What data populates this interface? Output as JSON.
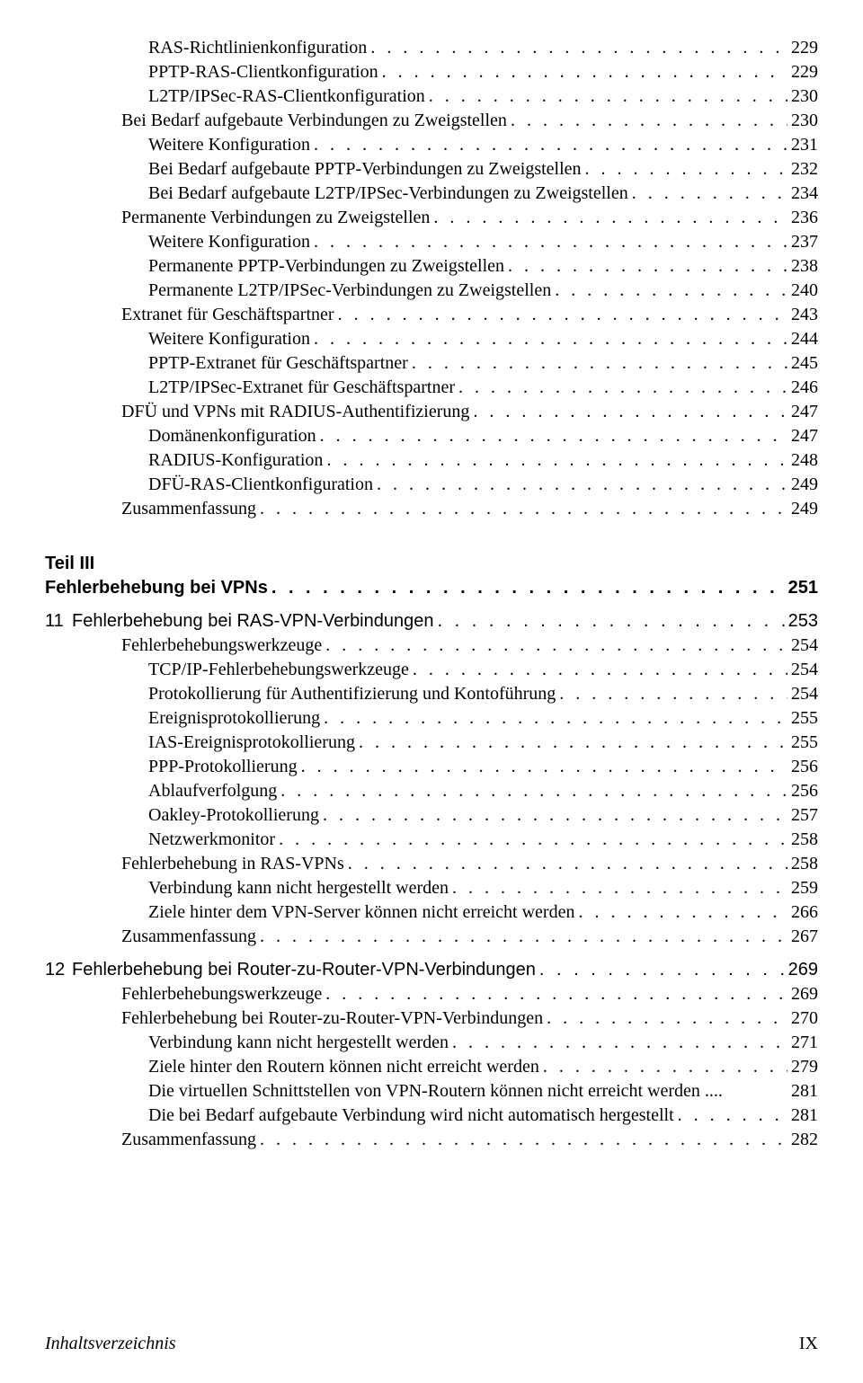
{
  "top": [
    {
      "label": "RAS-Richtlinienkonfiguration",
      "page": "229",
      "indent": 3
    },
    {
      "label": "PPTP-RAS-Clientkonfiguration",
      "page": "229",
      "indent": 3
    },
    {
      "label": "L2TP/IPSec-RAS-Clientkonfiguration",
      "page": "230",
      "indent": 3
    },
    {
      "label": "Bei Bedarf aufgebaute Verbindungen zu Zweigstellen",
      "page": "230",
      "indent": 2
    },
    {
      "label": "Weitere Konfiguration",
      "page": "231",
      "indent": 3
    },
    {
      "label": "Bei Bedarf aufgebaute PPTP-Verbindungen zu Zweigstellen",
      "page": "232",
      "indent": 3
    },
    {
      "label": "Bei Bedarf aufgebaute L2TP/IPSec-Verbindungen zu Zweigstellen",
      "page": "234",
      "indent": 3
    },
    {
      "label": "Permanente Verbindungen zu Zweigstellen",
      "page": "236",
      "indent": 2
    },
    {
      "label": "Weitere Konfiguration",
      "page": "237",
      "indent": 3
    },
    {
      "label": "Permanente PPTP-Verbindungen zu Zweigstellen",
      "page": "238",
      "indent": 3
    },
    {
      "label": "Permanente L2TP/IPSec-Verbindungen zu Zweigstellen",
      "page": "240",
      "indent": 3
    },
    {
      "label": "Extranet für Geschäftspartner",
      "page": "243",
      "indent": 2
    },
    {
      "label": "Weitere Konfiguration",
      "page": "244",
      "indent": 3
    },
    {
      "label": "PPTP-Extranet für Geschäftspartner",
      "page": "245",
      "indent": 3
    },
    {
      "label": "L2TP/IPSec-Extranet für Geschäftspartner",
      "page": "246",
      "indent": 3
    },
    {
      "label": "DFÜ und VPNs mit RADIUS-Authentifizierung",
      "page": "247",
      "indent": 2
    },
    {
      "label": "Domänenkonfiguration",
      "page": "247",
      "indent": 3
    },
    {
      "label": "RADIUS-Konfiguration",
      "page": "248",
      "indent": 3
    },
    {
      "label": "DFÜ-RAS-Clientkonfiguration",
      "page": "249",
      "indent": 3
    },
    {
      "label": "Zusammenfassung",
      "page": "249",
      "indent": 2
    }
  ],
  "part": {
    "label": "Teil III",
    "title": "Fehlerbehebung bei VPNs",
    "page": "251"
  },
  "chapters": [
    {
      "num": "11",
      "title": "Fehlerbehebung bei RAS-VPN-Verbindungen",
      "page": "253",
      "entries": [
        {
          "label": "Fehlerbehebungswerkzeuge",
          "page": "254",
          "indent": 2
        },
        {
          "label": "TCP/IP-Fehlerbehebungswerkzeuge",
          "page": "254",
          "indent": 3
        },
        {
          "label": "Protokollierung für Authentifizierung und Kontoführung",
          "page": "254",
          "indent": 3
        },
        {
          "label": "Ereignisprotokollierung",
          "page": "255",
          "indent": 3
        },
        {
          "label": "IAS-Ereignisprotokollierung",
          "page": "255",
          "indent": 3
        },
        {
          "label": "PPP-Protokollierung",
          "page": "256",
          "indent": 3
        },
        {
          "label": "Ablaufverfolgung",
          "page": "256",
          "indent": 3
        },
        {
          "label": "Oakley-Protokollierung",
          "page": "257",
          "indent": 3
        },
        {
          "label": "Netzwerkmonitor",
          "page": "258",
          "indent": 3
        },
        {
          "label": "Fehlerbehebung in RAS-VPNs",
          "page": "258",
          "indent": 2
        },
        {
          "label": "Verbindung kann nicht hergestellt werden",
          "page": "259",
          "indent": 3
        },
        {
          "label": "Ziele hinter dem VPN-Server können nicht erreicht werden",
          "page": "266",
          "indent": 3
        },
        {
          "label": "Zusammenfassung",
          "page": "267",
          "indent": 2
        }
      ]
    },
    {
      "num": "12",
      "title": "Fehlerbehebung bei Router-zu-Router-VPN-Verbindungen",
      "page": "269",
      "entries": [
        {
          "label": "Fehlerbehebungswerkzeuge",
          "page": "269",
          "indent": 2
        },
        {
          "label": "Fehlerbehebung bei Router-zu-Router-VPN-Verbindungen",
          "page": "270",
          "indent": 2
        },
        {
          "label": "Verbindung kann nicht hergestellt werden",
          "page": "271",
          "indent": 3
        },
        {
          "label": "Ziele hinter den Routern können nicht erreicht werden",
          "page": "279",
          "indent": 3
        },
        {
          "label": "Die virtuellen Schnittstellen von VPN-Routern können nicht erreicht werden ....",
          "page": "281",
          "indent": 3,
          "nodots": true
        },
        {
          "label": "Die bei Bedarf aufgebaute Verbindung wird nicht automatisch hergestellt",
          "page": "281",
          "indent": 3
        },
        {
          "label": "Zusammenfassung",
          "page": "282",
          "indent": 2
        }
      ]
    }
  ],
  "footer": {
    "left": "Inhaltsverzeichnis",
    "right": "IX"
  }
}
